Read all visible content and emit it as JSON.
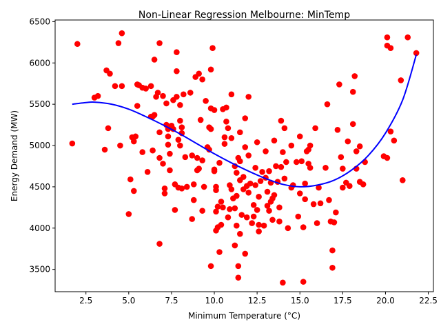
{
  "chart_data": {
    "type": "scatter",
    "title": "Non-Linear Regression Melbourne: MinTemp",
    "xlabel": "Minimum Temperature (°C)",
    "ylabel": "Energy Demand (MW)",
    "xlim": [
      0.7,
      22.8
    ],
    "ylim": [
      3230,
      6520
    ],
    "xticks": [
      2.5,
      5.0,
      7.5,
      10.0,
      12.5,
      15.0,
      17.5,
      20.0,
      22.5
    ],
    "xtick_labels": [
      "2.5",
      "5.0",
      "7.5",
      "10.0",
      "12.5",
      "15.0",
      "17.5",
      "20.0",
      "22.5"
    ],
    "yticks": [
      3500,
      4000,
      4500,
      5000,
      5500,
      6000,
      6500
    ],
    "ytick_labels": [
      "3500",
      "4000",
      "4500",
      "5000",
      "5500",
      "6000",
      "6500"
    ],
    "grid": false,
    "series": [
      {
        "kind": "scatter",
        "color": "#ff0000",
        "points": [
          [
            1.7,
            5025
          ],
          [
            2.0,
            6230
          ],
          [
            3.0,
            5580
          ],
          [
            3.2,
            5600
          ],
          [
            3.6,
            4950
          ],
          [
            3.7,
            5910
          ],
          [
            3.8,
            5210
          ],
          [
            3.9,
            5870
          ],
          [
            4.2,
            5720
          ],
          [
            4.4,
            6240
          ],
          [
            4.5,
            5000
          ],
          [
            4.6,
            5720
          ],
          [
            4.6,
            6360
          ],
          [
            5.0,
            4170
          ],
          [
            5.1,
            4590
          ],
          [
            5.2,
            5100
          ],
          [
            5.3,
            4450
          ],
          [
            5.3,
            5050
          ],
          [
            5.4,
            5110
          ],
          [
            5.5,
            5480
          ],
          [
            5.5,
            5740
          ],
          [
            5.6,
            5730
          ],
          [
            5.8,
            4920
          ],
          [
            5.8,
            5700
          ],
          [
            6.0,
            5690
          ],
          [
            6.1,
            4680
          ],
          [
            6.3,
            5720
          ],
          [
            6.3,
            5350
          ],
          [
            6.4,
            4940
          ],
          [
            6.4,
            5350
          ],
          [
            6.5,
            5370
          ],
          [
            6.5,
            6040
          ],
          [
            6.6,
            5590
          ],
          [
            6.7,
            5640
          ],
          [
            6.8,
            6240
          ],
          [
            6.8,
            3810
          ],
          [
            6.8,
            4850
          ],
          [
            6.8,
            5160
          ],
          [
            7.0,
            4780
          ],
          [
            7.0,
            5600
          ],
          [
            7.1,
            4420
          ],
          [
            7.1,
            4480
          ],
          [
            7.2,
            5250
          ],
          [
            7.2,
            5510
          ],
          [
            7.3,
            5110
          ],
          [
            7.3,
            5200
          ],
          [
            7.3,
            5010
          ],
          [
            7.4,
            4900
          ],
          [
            7.4,
            4700
          ],
          [
            7.5,
            5240
          ],
          [
            7.6,
            5550
          ],
          [
            7.6,
            5200
          ],
          [
            7.7,
            4220
          ],
          [
            7.7,
            4530
          ],
          [
            7.8,
            5590
          ],
          [
            7.8,
            5900
          ],
          [
            7.8,
            6130
          ],
          [
            7.9,
            4490
          ],
          [
            7.9,
            5070
          ],
          [
            8.0,
            5000
          ],
          [
            8.0,
            5300
          ],
          [
            8.0,
            5490
          ],
          [
            8.1,
            5220
          ],
          [
            8.1,
            5150
          ],
          [
            8.1,
            4480
          ],
          [
            8.2,
            5620
          ],
          [
            8.3,
            4860
          ],
          [
            8.4,
            4500
          ],
          [
            8.6,
            5640
          ],
          [
            8.7,
            4110
          ],
          [
            8.7,
            4880
          ],
          [
            8.8,
            4340
          ],
          [
            8.8,
            4530
          ],
          [
            8.9,
            5830
          ],
          [
            9.0,
            4850
          ],
          [
            9.0,
            4700
          ],
          [
            9.1,
            5870
          ],
          [
            9.1,
            4720
          ],
          [
            9.2,
            5310
          ],
          [
            9.3,
            4820
          ],
          [
            9.3,
            5800
          ],
          [
            9.3,
            4210
          ],
          [
            9.4,
            4500
          ],
          [
            9.5,
            5540
          ],
          [
            9.6,
            4980
          ],
          [
            9.7,
            4950
          ],
          [
            9.7,
            5220
          ],
          [
            9.8,
            5450
          ],
          [
            9.8,
            5920
          ],
          [
            9.8,
            3540
          ],
          [
            9.8,
            5200
          ],
          [
            9.9,
            6180
          ],
          [
            10.0,
            4710
          ],
          [
            10.0,
            4690
          ],
          [
            10.0,
            5430
          ],
          [
            10.1,
            4500
          ],
          [
            10.1,
            4200
          ],
          [
            10.1,
            3970
          ],
          [
            10.1,
            4460
          ],
          [
            10.2,
            4010
          ],
          [
            10.2,
            4260
          ],
          [
            10.3,
            4790
          ],
          [
            10.3,
            3710
          ],
          [
            10.4,
            4320
          ],
          [
            10.4,
            4040
          ],
          [
            10.5,
            4250
          ],
          [
            10.5,
            5440
          ],
          [
            10.6,
            5020
          ],
          [
            10.6,
            5100
          ],
          [
            10.7,
            5290
          ],
          [
            10.7,
            5460
          ],
          [
            10.8,
            4130
          ],
          [
            10.8,
            5210
          ],
          [
            10.9,
            4520
          ],
          [
            10.9,
            4230
          ],
          [
            11.0,
            5620
          ],
          [
            11.0,
            4470
          ],
          [
            11.0,
            5090
          ],
          [
            11.1,
            4360
          ],
          [
            11.2,
            3790
          ],
          [
            11.2,
            4240
          ],
          [
            11.2,
            4750
          ],
          [
            11.3,
            4670
          ],
          [
            11.3,
            4390
          ],
          [
            11.3,
            4030
          ],
          [
            11.4,
            4850
          ],
          [
            11.4,
            3540
          ],
          [
            11.4,
            3400
          ],
          [
            11.5,
            4810
          ],
          [
            11.5,
            5160
          ],
          [
            11.5,
            4580
          ],
          [
            11.5,
            3930
          ],
          [
            11.6,
            4160
          ],
          [
            11.7,
            4470
          ],
          [
            11.7,
            4620
          ],
          [
            11.8,
            4980
          ],
          [
            11.8,
            5330
          ],
          [
            11.8,
            3690
          ],
          [
            11.9,
            4130
          ],
          [
            11.9,
            4510
          ],
          [
            12.0,
            4880
          ],
          [
            12.0,
            5590
          ],
          [
            12.0,
            4430
          ],
          [
            12.1,
            4540
          ],
          [
            12.2,
            4060
          ],
          [
            12.3,
            4140
          ],
          [
            12.3,
            4280
          ],
          [
            12.4,
            4730
          ],
          [
            12.4,
            4520
          ],
          [
            12.5,
            5040
          ],
          [
            12.5,
            4220
          ],
          [
            12.6,
            4040
          ],
          [
            12.6,
            3960
          ],
          [
            12.6,
            4380
          ],
          [
            12.7,
            4570
          ],
          [
            12.8,
            4680
          ],
          [
            12.9,
            4030
          ],
          [
            13.0,
            4610
          ],
          [
            13.0,
            4930
          ],
          [
            13.1,
            4270
          ],
          [
            13.1,
            4440
          ],
          [
            13.2,
            4690
          ],
          [
            13.2,
            4210
          ],
          [
            13.3,
            4320
          ],
          [
            13.3,
            4550
          ],
          [
            13.4,
            4100
          ],
          [
            13.4,
            4360
          ],
          [
            13.5,
            4400
          ],
          [
            13.5,
            5060
          ],
          [
            13.6,
            4750
          ],
          [
            13.7,
            4560
          ],
          [
            13.8,
            4250
          ],
          [
            13.8,
            4080
          ],
          [
            13.9,
            4740
          ],
          [
            13.9,
            5300
          ],
          [
            14.0,
            4920
          ],
          [
            14.0,
            3340
          ],
          [
            14.1,
            5210
          ],
          [
            14.1,
            4600
          ],
          [
            14.2,
            4800
          ],
          [
            14.3,
            4000
          ],
          [
            14.5,
            5000
          ],
          [
            14.5,
            4490
          ],
          [
            14.6,
            4520
          ],
          [
            14.8,
            4800
          ],
          [
            14.9,
            4140
          ],
          [
            15.0,
            5110
          ],
          [
            15.0,
            4420
          ],
          [
            15.1,
            4810
          ],
          [
            15.2,
            3350
          ],
          [
            15.2,
            4010
          ],
          [
            15.3,
            4350
          ],
          [
            15.3,
            4540
          ],
          [
            15.4,
            4930
          ],
          [
            15.5,
            4780
          ],
          [
            15.5,
            4950
          ],
          [
            15.6,
            5000
          ],
          [
            15.6,
            4730
          ],
          [
            15.8,
            4290
          ],
          [
            15.9,
            5210
          ],
          [
            16.0,
            4060
          ],
          [
            16.1,
            4490
          ],
          [
            16.2,
            4300
          ],
          [
            16.5,
            4730
          ],
          [
            16.6,
            5500
          ],
          [
            16.7,
            4340
          ],
          [
            16.8,
            4080
          ],
          [
            16.9,
            3730
          ],
          [
            16.9,
            3520
          ],
          [
            17.0,
            4070
          ],
          [
            17.1,
            4190
          ],
          [
            17.2,
            5190
          ],
          [
            17.3,
            5740
          ],
          [
            17.4,
            4860
          ],
          [
            17.5,
            4490
          ],
          [
            17.5,
            4720
          ],
          [
            17.7,
            4550
          ],
          [
            17.8,
            5050
          ],
          [
            17.9,
            4510
          ],
          [
            18.1,
            5260
          ],
          [
            18.1,
            5650
          ],
          [
            18.2,
            5840
          ],
          [
            18.3,
            4720
          ],
          [
            18.3,
            4930
          ],
          [
            18.5,
            4560
          ],
          [
            18.5,
            4990
          ],
          [
            18.7,
            4530
          ],
          [
            18.8,
            4800
          ],
          [
            19.9,
            4870
          ],
          [
            20.1,
            4850
          ],
          [
            20.1,
            6310
          ],
          [
            20.1,
            6210
          ],
          [
            20.3,
            6180
          ],
          [
            20.3,
            5170
          ],
          [
            20.5,
            5060
          ],
          [
            20.9,
            5790
          ],
          [
            21.0,
            4580
          ],
          [
            21.3,
            6310
          ],
          [
            21.8,
            6120
          ]
        ]
      },
      {
        "kind": "line",
        "color": "#0000ff",
        "points": [
          [
            1.7,
            5500
          ],
          [
            2.5,
            5520
          ],
          [
            3.0,
            5525
          ],
          [
            4.0,
            5500
          ],
          [
            5.0,
            5440
          ],
          [
            6.0,
            5350
          ],
          [
            7.0,
            5250
          ],
          [
            8.0,
            5140
          ],
          [
            9.0,
            5020
          ],
          [
            10.0,
            4900
          ],
          [
            11.0,
            4790
          ],
          [
            12.0,
            4690
          ],
          [
            13.0,
            4600
          ],
          [
            14.0,
            4530
          ],
          [
            15.0,
            4500
          ],
          [
            16.0,
            4520
          ],
          [
            17.0,
            4580
          ],
          [
            18.0,
            4700
          ],
          [
            19.0,
            4880
          ],
          [
            20.0,
            5150
          ],
          [
            21.0,
            5550
          ],
          [
            21.8,
            6100
          ]
        ]
      }
    ]
  }
}
